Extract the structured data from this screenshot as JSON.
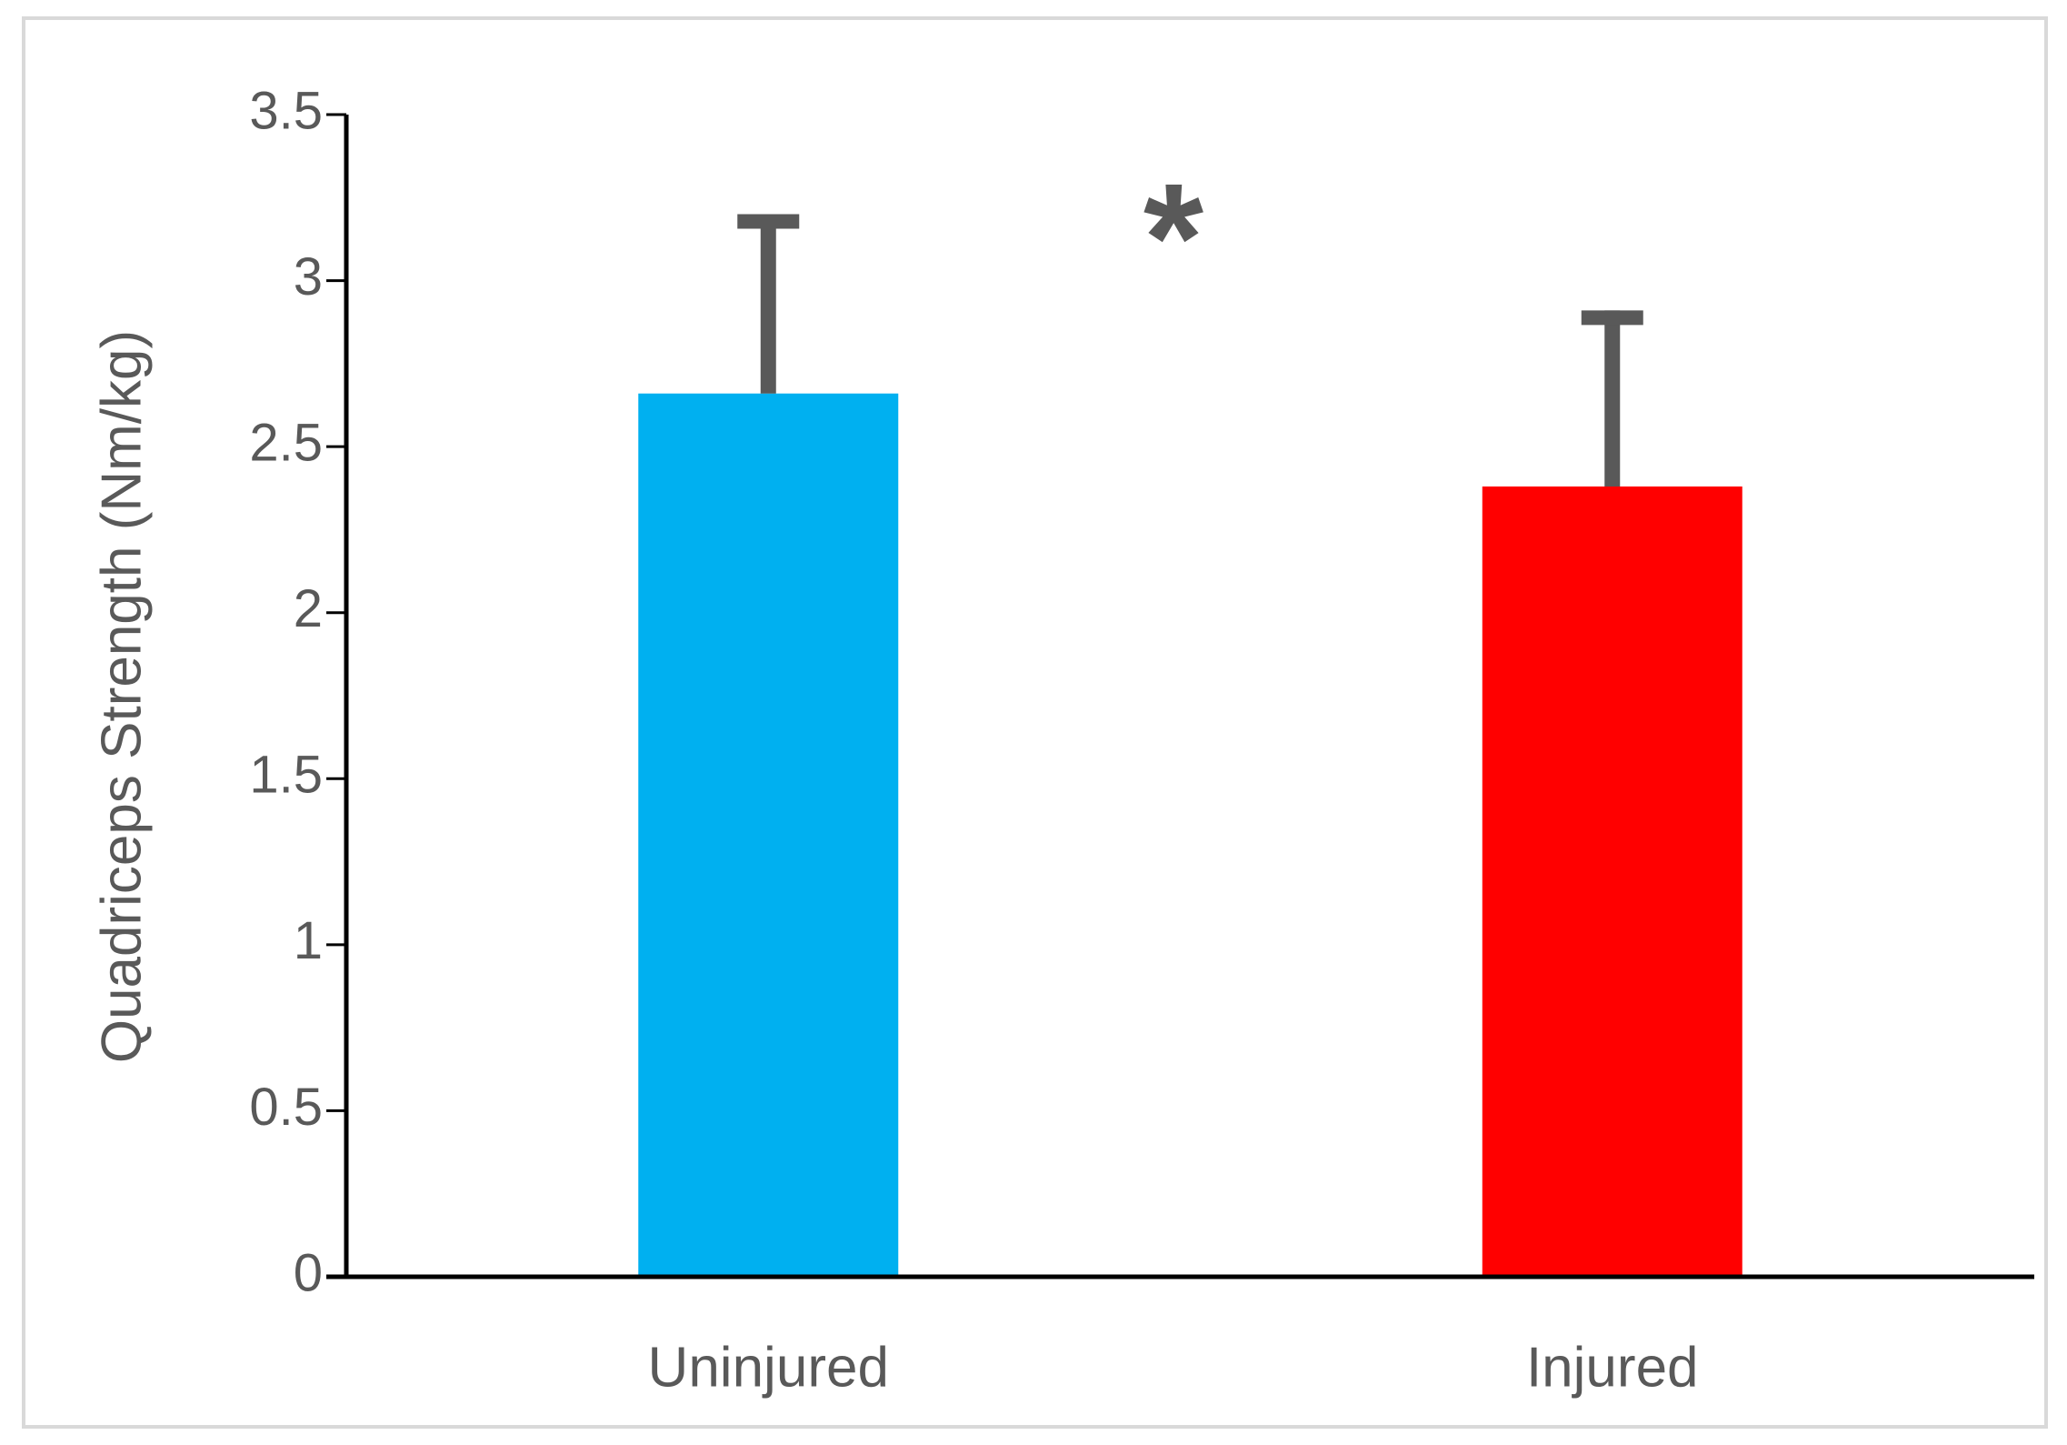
{
  "chart_data": {
    "type": "bar",
    "y_label": "Quadriceps Strength (Nm/kg)",
    "categories": [
      "Uninjured",
      "Injured"
    ],
    "values": [
      2.66,
      2.38
    ],
    "errors": [
      0.54,
      0.53
    ],
    "colors": [
      "#00b0f0",
      "#ff0000"
    ],
    "annotation": "*",
    "ylim": [
      0,
      3.5
    ],
    "yticks": [
      0,
      0.5,
      1,
      1.5,
      2,
      2.5,
      3,
      3.5
    ],
    "grid": false
  }
}
